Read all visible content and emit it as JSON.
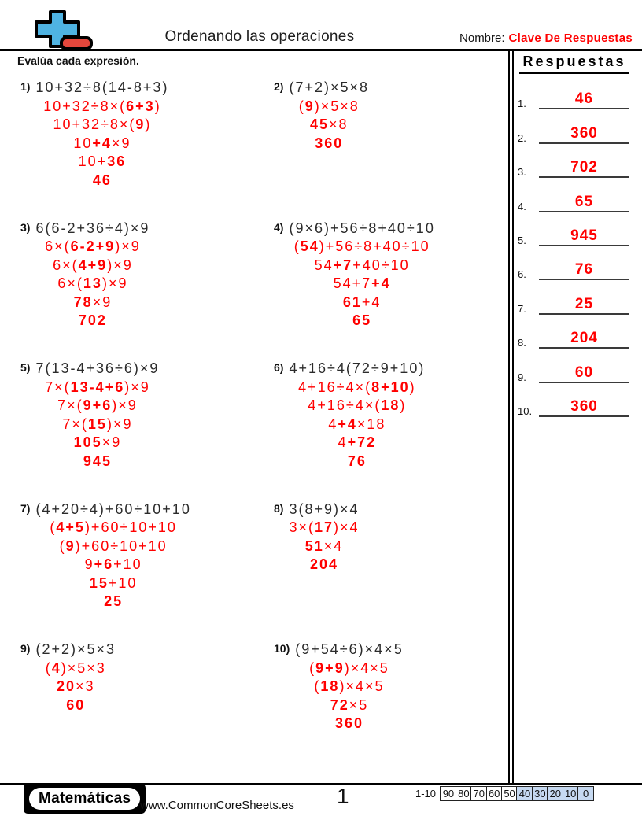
{
  "header": {
    "title": "Ordenando las operaciones",
    "name_label": "Nombre:",
    "name_value": "Clave De Respuestas",
    "instruction": "Evalúa cada expresión.",
    "logo_icon": "plus-minus-math-logo"
  },
  "colors": {
    "accent_red": "#ff0000",
    "logo_blue": "#4FB3E2",
    "logo_red": "#E4473C",
    "score_highlight_blue": "#c6d9f1"
  },
  "answers_panel": {
    "title": "Respuestas",
    "items": [
      {
        "n": "1.",
        "value": "46"
      },
      {
        "n": "2.",
        "value": "360"
      },
      {
        "n": "3.",
        "value": "702"
      },
      {
        "n": "4.",
        "value": "65"
      },
      {
        "n": "5.",
        "value": "945"
      },
      {
        "n": "6.",
        "value": "76"
      },
      {
        "n": "7.",
        "value": "25"
      },
      {
        "n": "8.",
        "value": "204"
      },
      {
        "n": "9.",
        "value": "60"
      },
      {
        "n": "10.",
        "value": "360"
      }
    ]
  },
  "problems": [
    {
      "id": 1,
      "label": "1)",
      "expr": "10+32÷8(14-8+3)",
      "steps": [
        [
          [
            "10+32÷8×(",
            0
          ],
          [
            "6+3",
            1
          ],
          [
            ")",
            0
          ]
        ],
        [
          [
            "10+32÷8×(",
            0
          ],
          [
            "9",
            1
          ],
          [
            ")",
            0
          ]
        ],
        [
          [
            "10",
            0
          ],
          [
            "+4",
            1
          ],
          [
            "×9",
            0
          ]
        ],
        [
          [
            "10",
            0
          ],
          [
            "+36",
            1
          ]
        ],
        [
          [
            "46",
            1
          ]
        ]
      ]
    },
    {
      "id": 2,
      "label": "2)",
      "expr": "(7+2)×5×8",
      "steps": [
        [
          [
            "(",
            0
          ],
          [
            "9",
            1
          ],
          [
            ")×5×8",
            0
          ]
        ],
        [
          [
            "45",
            1
          ],
          [
            "×8",
            0
          ]
        ],
        [
          [
            "360",
            1
          ]
        ]
      ]
    },
    {
      "id": 3,
      "label": "3)",
      "expr": "6(6-2+36÷4)×9",
      "steps": [
        [
          [
            "6×(",
            0
          ],
          [
            "6-2+9",
            1
          ],
          [
            ")×9",
            0
          ]
        ],
        [
          [
            "6×(",
            0
          ],
          [
            "4+9",
            1
          ],
          [
            ")×9",
            0
          ]
        ],
        [
          [
            "6×(",
            0
          ],
          [
            "13",
            1
          ],
          [
            ")×9",
            0
          ]
        ],
        [
          [
            "78",
            1
          ],
          [
            "×9",
            0
          ]
        ],
        [
          [
            "702",
            1
          ]
        ]
      ]
    },
    {
      "id": 4,
      "label": "4)",
      "expr": "(9×6)+56÷8+40÷10",
      "steps": [
        [
          [
            "(",
            0
          ],
          [
            "54",
            1
          ],
          [
            ")+56÷8+40÷10",
            0
          ]
        ],
        [
          [
            "54",
            0
          ],
          [
            "+7",
            1
          ],
          [
            "+40÷10",
            0
          ]
        ],
        [
          [
            "54+7",
            0
          ],
          [
            "+4",
            1
          ]
        ],
        [
          [
            "61",
            1
          ],
          [
            "+4",
            0
          ]
        ],
        [
          [
            "65",
            1
          ]
        ]
      ]
    },
    {
      "id": 5,
      "label": "5)",
      "expr": "7(13-4+36÷6)×9",
      "steps": [
        [
          [
            "7×(",
            0
          ],
          [
            "13-4+6",
            1
          ],
          [
            ")×9",
            0
          ]
        ],
        [
          [
            "7×(",
            0
          ],
          [
            "9+6",
            1
          ],
          [
            ")×9",
            0
          ]
        ],
        [
          [
            "7×(",
            0
          ],
          [
            "15",
            1
          ],
          [
            ")×9",
            0
          ]
        ],
        [
          [
            "105",
            1
          ],
          [
            "×9",
            0
          ]
        ],
        [
          [
            "945",
            1
          ]
        ]
      ]
    },
    {
      "id": 6,
      "label": "6)",
      "expr": "4+16÷4(72÷9+10)",
      "steps": [
        [
          [
            "4+16÷4×(",
            0
          ],
          [
            "8+10",
            1
          ],
          [
            ")",
            0
          ]
        ],
        [
          [
            "4+16÷4×(",
            0
          ],
          [
            "18",
            1
          ],
          [
            ")",
            0
          ]
        ],
        [
          [
            "4",
            0
          ],
          [
            "+4",
            1
          ],
          [
            "×18",
            0
          ]
        ],
        [
          [
            "4",
            0
          ],
          [
            "+72",
            1
          ]
        ],
        [
          [
            "76",
            1
          ]
        ]
      ]
    },
    {
      "id": 7,
      "label": "7)",
      "expr": "(4+20÷4)+60÷10+10",
      "steps": [
        [
          [
            "(",
            0
          ],
          [
            "4+5",
            1
          ],
          [
            ")+60÷10+10",
            0
          ]
        ],
        [
          [
            "(",
            0
          ],
          [
            "9",
            1
          ],
          [
            ")+60÷10+10",
            0
          ]
        ],
        [
          [
            "9",
            0
          ],
          [
            "+6",
            1
          ],
          [
            "+10",
            0
          ]
        ],
        [
          [
            "15",
            1
          ],
          [
            "+10",
            0
          ]
        ],
        [
          [
            "25",
            1
          ]
        ]
      ]
    },
    {
      "id": 8,
      "label": "8)",
      "expr": "3(8+9)×4",
      "steps": [
        [
          [
            "3×(",
            0
          ],
          [
            "17",
            1
          ],
          [
            ")×4",
            0
          ]
        ],
        [
          [
            "51",
            1
          ],
          [
            "×4",
            0
          ]
        ],
        [
          [
            "204",
            1
          ]
        ]
      ]
    },
    {
      "id": 9,
      "label": "9)",
      "expr": "(2+2)×5×3",
      "steps": [
        [
          [
            "(",
            0
          ],
          [
            "4",
            1
          ],
          [
            ")×5×3",
            0
          ]
        ],
        [
          [
            "20",
            1
          ],
          [
            "×3",
            0
          ]
        ],
        [
          [
            "60",
            1
          ]
        ]
      ]
    },
    {
      "id": 10,
      "label": "10)",
      "expr": "(9+54÷6)×4×5",
      "steps": [
        [
          [
            "(",
            0
          ],
          [
            "9+9",
            1
          ],
          [
            ")×4×5",
            0
          ]
        ],
        [
          [
            "(",
            0
          ],
          [
            "18",
            1
          ],
          [
            ")×4×5",
            0
          ]
        ],
        [
          [
            "72",
            1
          ],
          [
            "×5",
            0
          ]
        ],
        [
          [
            "360",
            1
          ]
        ]
      ]
    }
  ],
  "footer": {
    "brand": "Matemáticas",
    "website": "www.CommonCoreSheets.es",
    "page_number": "1",
    "score": {
      "label": "1-10",
      "cells": [
        {
          "v": "90",
          "hl": false
        },
        {
          "v": "80",
          "hl": false
        },
        {
          "v": "70",
          "hl": false
        },
        {
          "v": "60",
          "hl": false
        },
        {
          "v": "50",
          "hl": false
        },
        {
          "v": "40",
          "hl": true
        },
        {
          "v": "30",
          "hl": true
        },
        {
          "v": "20",
          "hl": true
        },
        {
          "v": "10",
          "hl": true
        },
        {
          "v": "0",
          "hl": true
        }
      ]
    }
  }
}
